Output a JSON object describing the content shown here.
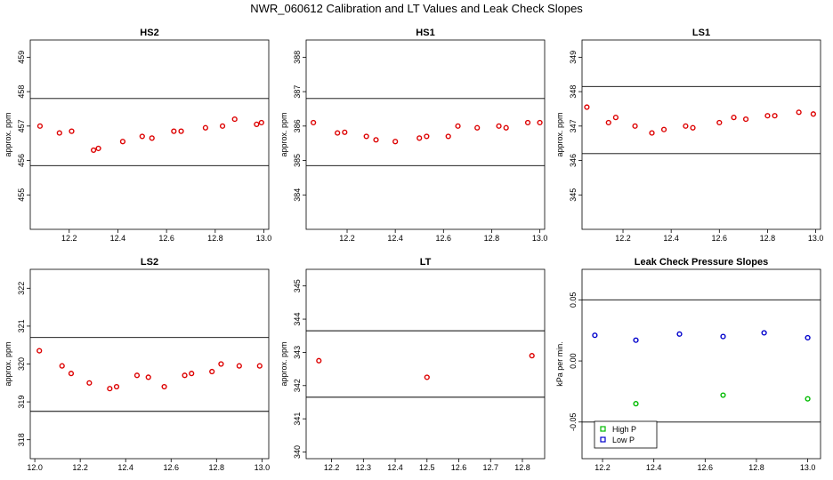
{
  "figure": {
    "title": "NWR_060612  Calibration and LT Values and Leak Check Slopes"
  },
  "colors": {
    "points": "#dd0000",
    "high_p": "#00bb00",
    "low_p": "#0000cc",
    "axis": "#000000"
  },
  "chart_data": [
    {
      "type": "scatter",
      "title": "HS2",
      "xlabel": "",
      "ylabel": "approx. ppm",
      "xlim": [
        12.04,
        13.02
      ],
      "ylim": [
        454.0,
        459.5
      ],
      "xticks": [
        12.2,
        12.4,
        12.6,
        12.8,
        13.0
      ],
      "yticks": [
        455,
        456,
        457,
        458,
        459
      ],
      "hlines": [
        457.8,
        455.85
      ],
      "series": [
        {
          "x": [
            12.08,
            12.16,
            12.21,
            12.3,
            12.32,
            12.42,
            12.5,
            12.54,
            12.63,
            12.66,
            12.76,
            12.83,
            12.88,
            12.97,
            12.99
          ],
          "y": [
            457.0,
            456.8,
            456.85,
            456.3,
            456.35,
            456.55,
            456.7,
            456.65,
            456.85,
            456.85,
            456.95,
            457.0,
            457.2,
            457.05,
            457.1
          ]
        }
      ],
      "grid": false,
      "legend": "none"
    },
    {
      "type": "scatter",
      "title": "HS1",
      "xlabel": "",
      "ylabel": "approx. ppm",
      "xlim": [
        12.03,
        13.02
      ],
      "ylim": [
        383.0,
        388.5
      ],
      "xticks": [
        12.2,
        12.4,
        12.6,
        12.8,
        13.0
      ],
      "yticks": [
        384,
        385,
        386,
        387,
        388
      ],
      "hlines": [
        386.8,
        384.85
      ],
      "series": [
        {
          "x": [
            12.06,
            12.16,
            12.19,
            12.28,
            12.32,
            12.4,
            12.5,
            12.53,
            12.62,
            12.66,
            12.74,
            12.83,
            12.86,
            12.95,
            13.0
          ],
          "y": [
            386.1,
            385.8,
            385.82,
            385.7,
            385.6,
            385.55,
            385.65,
            385.7,
            385.7,
            386.0,
            385.95,
            386.0,
            385.95,
            386.1,
            386.1
          ]
        }
      ],
      "grid": false,
      "legend": "none"
    },
    {
      "type": "scatter",
      "title": "LS1",
      "xlabel": "",
      "ylabel": "approx. ppm",
      "xlim": [
        12.03,
        13.02
      ],
      "ylim": [
        344.0,
        349.5
      ],
      "xticks": [
        12.2,
        12.4,
        12.6,
        12.8,
        13.0
      ],
      "yticks": [
        345,
        346,
        347,
        348,
        349
      ],
      "hlines": [
        348.15,
        346.2
      ],
      "series": [
        {
          "x": [
            12.05,
            12.14,
            12.17,
            12.25,
            12.32,
            12.37,
            12.46,
            12.49,
            12.6,
            12.66,
            12.71,
            12.8,
            12.83,
            12.93,
            12.99
          ],
          "y": [
            347.55,
            347.1,
            347.25,
            347.0,
            346.8,
            346.9,
            347.0,
            346.95,
            347.1,
            347.25,
            347.2,
            347.3,
            347.3,
            347.4,
            347.35
          ]
        }
      ],
      "grid": false,
      "legend": "none"
    },
    {
      "type": "scatter",
      "title": "LS2",
      "xlabel": "",
      "ylabel": "approx. ppm",
      "xlim": [
        11.98,
        13.03
      ],
      "ylim": [
        317.5,
        322.5
      ],
      "xticks": [
        12.0,
        12.2,
        12.4,
        12.6,
        12.8,
        13.0
      ],
      "yticks": [
        318,
        319,
        320,
        321,
        322
      ],
      "hlines": [
        320.7,
        318.75
      ],
      "series": [
        {
          "x": [
            12.02,
            12.12,
            12.16,
            12.24,
            12.33,
            12.36,
            12.45,
            12.5,
            12.57,
            12.66,
            12.69,
            12.78,
            12.82,
            12.9,
            12.99
          ],
          "y": [
            320.35,
            319.95,
            319.75,
            319.5,
            319.35,
            319.4,
            319.7,
            319.65,
            319.4,
            319.7,
            319.75,
            319.8,
            320.0,
            319.95,
            319.95
          ]
        }
      ],
      "grid": false,
      "legend": "none"
    },
    {
      "type": "scatter",
      "title": "LT",
      "xlabel": "",
      "ylabel": "approx. ppm",
      "xlim": [
        12.12,
        12.87
      ],
      "ylim": [
        339.8,
        345.5
      ],
      "xticks": [
        12.2,
        12.3,
        12.4,
        12.5,
        12.6,
        12.7,
        12.8
      ],
      "yticks": [
        340,
        341,
        342,
        343,
        344,
        345
      ],
      "hlines": [
        343.65,
        341.65
      ],
      "series": [
        {
          "x": [
            12.16,
            12.5,
            12.83
          ],
          "y": [
            342.75,
            342.25,
            342.9
          ]
        }
      ],
      "grid": false,
      "legend": "none"
    },
    {
      "type": "scatter",
      "title": "Leak Check Pressure Slopes",
      "xlabel": "",
      "ylabel": "kPa per min.",
      "xlim": [
        12.12,
        13.05
      ],
      "ylim": [
        -0.08,
        0.075
      ],
      "xticks": [
        12.2,
        12.4,
        12.6,
        12.8,
        13.0
      ],
      "yticks": [
        -0.05,
        0.0,
        0.05
      ],
      "ytick_labels": [
        "-0.05",
        "0.00",
        "0.05"
      ],
      "hlines": [
        0.05,
        -0.05
      ],
      "series": [
        {
          "name": "High P",
          "color": "#00bb00",
          "x": [
            12.33,
            12.67,
            13.0
          ],
          "y": [
            -0.035,
            -0.028,
            -0.031
          ]
        },
        {
          "name": "Low P",
          "color": "#0000cc",
          "x": [
            12.17,
            12.33,
            12.5,
            12.67,
            12.83,
            13.0
          ],
          "y": [
            0.021,
            0.017,
            0.022,
            0.02,
            0.023,
            0.019
          ]
        }
      ],
      "grid": false,
      "legend": "bottom-left"
    }
  ]
}
